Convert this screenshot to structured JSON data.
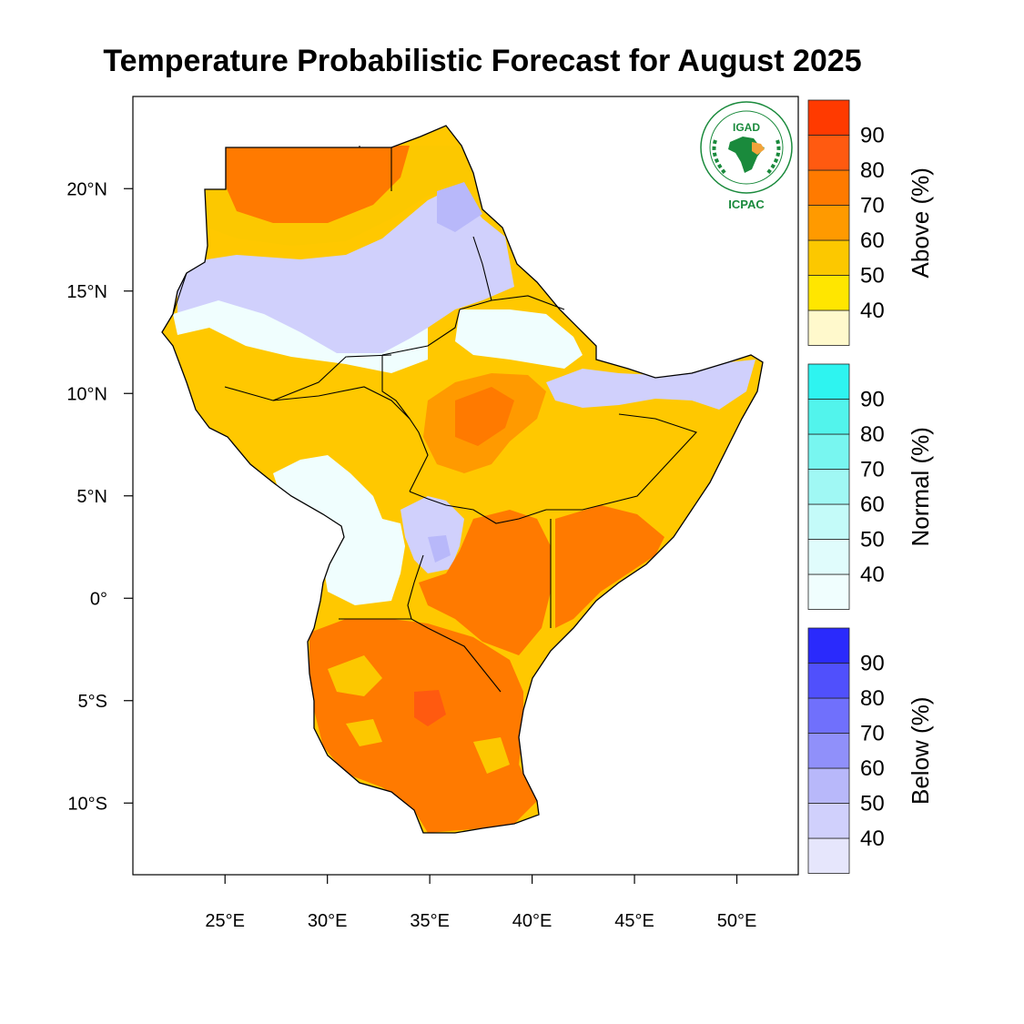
{
  "title": "Temperature Probabilistic Forecast for August 2025",
  "logo": {
    "top_text": "IGAD",
    "bottom_text": "ICPAC",
    "ring_text": "INTERGOVERNMENTAL AUTHORITY ON DEVELOPMENT",
    "color": "#1a8a3c"
  },
  "map": {
    "lon_range": [
      20.5,
      53
    ],
    "lat_range": [
      -13.5,
      24.5
    ],
    "x_ticks": [
      {
        "value": 25,
        "label": "25°E"
      },
      {
        "value": 30,
        "label": "30°E"
      },
      {
        "value": 35,
        "label": "35°E"
      },
      {
        "value": 40,
        "label": "40°E"
      },
      {
        "value": 45,
        "label": "45°E"
      },
      {
        "value": 50,
        "label": "50°E"
      }
    ],
    "y_ticks": [
      {
        "value": 20,
        "label": "20°N"
      },
      {
        "value": 15,
        "label": "15°N"
      },
      {
        "value": 10,
        "label": "10°N"
      },
      {
        "value": 5,
        "label": "5°N"
      },
      {
        "value": 0,
        "label": "0°"
      },
      {
        "value": -5,
        "label": "5°S"
      },
      {
        "value": -10,
        "label": "10°S"
      }
    ]
  },
  "legends": [
    {
      "title": "Above (%)",
      "labels": [
        "90",
        "80",
        "70",
        "60",
        "50",
        "40"
      ],
      "colors": [
        "#fff9cc",
        "#ffe600",
        "#fcc800",
        "#ff9a00",
        "#ff7a00",
        "#ff5a10",
        "#ff3a00"
      ]
    },
    {
      "title": "Normal (%)",
      "labels": [
        "90",
        "80",
        "70",
        "60",
        "50",
        "40"
      ],
      "colors": [
        "#f0fefe",
        "#e0fcfc",
        "#c4fbf9",
        "#a0f8f4",
        "#78f6f0",
        "#52f4ec",
        "#2ef4f0"
      ]
    },
    {
      "title": "Below (%)",
      "labels": [
        "90",
        "80",
        "70",
        "60",
        "50",
        "40"
      ],
      "colors": [
        "#e6e6fc",
        "#d0d0fc",
        "#b8b8fa",
        "#9090fa",
        "#7070fc",
        "#5050fc",
        "#2a2afc"
      ]
    }
  ]
}
